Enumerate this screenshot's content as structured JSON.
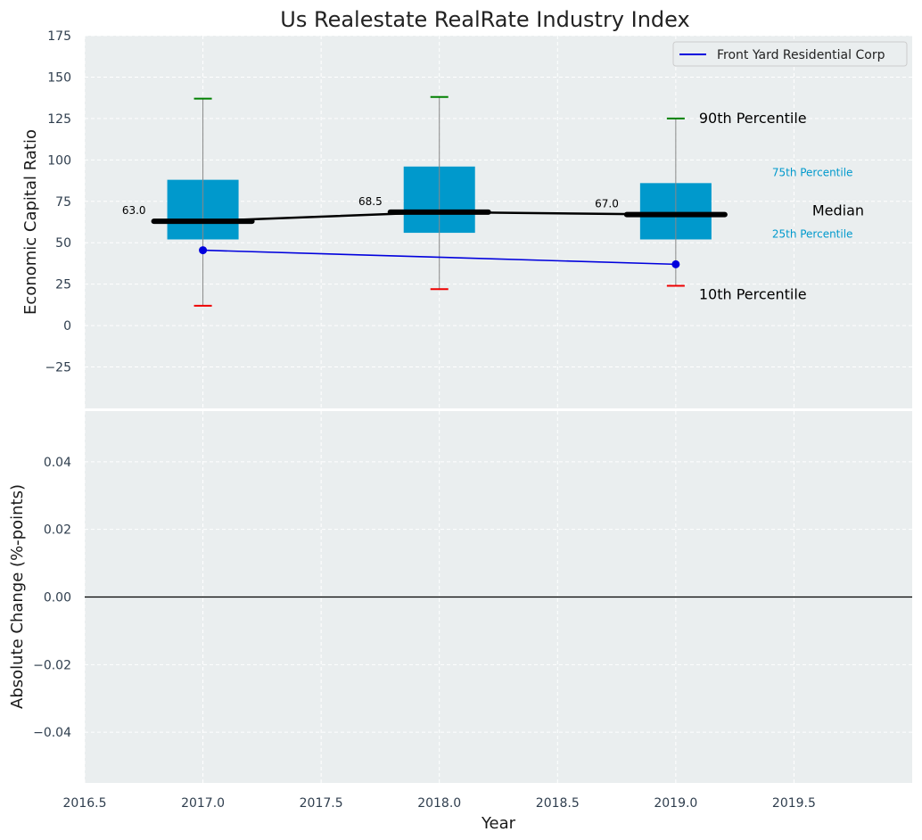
{
  "chart_data": [
    {
      "type": "box",
      "title": "Us Realestate RealRate Industry Index",
      "xlabel": "",
      "ylabel": "Economic Capital Ratio",
      "xlim": [
        2016.5,
        2020.0
      ],
      "ylim": [
        -50,
        175
      ],
      "y_ticks": [
        -25,
        0,
        25,
        50,
        75,
        100,
        125,
        150,
        175
      ],
      "y_tick_labels": [
        "−25",
        "0",
        "25",
        "50",
        "75",
        "100",
        "125",
        "150",
        "175"
      ],
      "grid": true,
      "legend_position": "top-right",
      "boxes": [
        {
          "x": 2017.0,
          "p10": 12,
          "p25": 52,
          "median": 63.0,
          "p75": 88,
          "p90": 137,
          "median_label": "63.0"
        },
        {
          "x": 2018.0,
          "p10": 22,
          "p25": 56,
          "median": 68.5,
          "p75": 96,
          "p90": 138,
          "median_label": "68.5"
        },
        {
          "x": 2019.0,
          "p10": 24,
          "p25": 52,
          "median": 67.0,
          "p75": 86,
          "p90": 125,
          "median_label": "67.0"
        }
      ],
      "series": [
        {
          "name": "Front Yard Residential Corp",
          "color": "#0000dd",
          "x": [
            2017.0,
            2019.0
          ],
          "values": [
            45.5,
            37.0
          ]
        }
      ],
      "annotations": {
        "p90": "90th Percentile",
        "p75": "75th Percentile",
        "median": "Median",
        "p25": "25th Percentile",
        "p10": "10th Percentile"
      },
      "colors": {
        "box": "#0099cc",
        "median_line": "#000000",
        "p90_cap": "#008000",
        "p10_cap": "#ee0000",
        "whisker": "#888888",
        "background": "#eaeeef"
      }
    },
    {
      "type": "line",
      "title": "",
      "xlabel": "Year",
      "ylabel": "Absolute Change (%-points)",
      "xlim": [
        2016.5,
        2020.0
      ],
      "ylim": [
        -0.055,
        0.055
      ],
      "x_ticks": [
        2016.5,
        2017.0,
        2017.5,
        2018.0,
        2018.5,
        2019.0,
        2019.5
      ],
      "x_tick_labels": [
        "2016.5",
        "2017.0",
        "2017.5",
        "2018.0",
        "2018.5",
        "2019.0",
        "2019.5"
      ],
      "y_ticks": [
        -0.04,
        -0.02,
        0.0,
        0.02,
        0.04
      ],
      "y_tick_labels": [
        "−0.04",
        "−0.02",
        "0.00",
        "0.02",
        "0.04"
      ],
      "grid": true,
      "zero_line": true
    }
  ]
}
